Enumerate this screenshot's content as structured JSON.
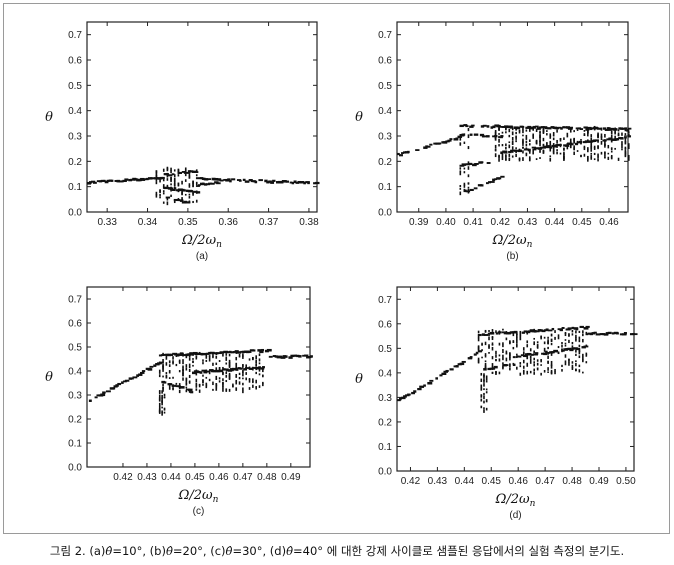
{
  "caption": {
    "prefix": "그림 2.",
    "parts": [
      {
        "label": "(a)",
        "symbol": "θ̂",
        "value": "=10°"
      },
      {
        "label": "(b)",
        "symbol": "θ̂",
        "value": "=20°"
      },
      {
        "label": "(c)",
        "symbol": "θ̂",
        "value": "=30°"
      },
      {
        "label": "(d)",
        "symbol": "θ̂",
        "value": "=40°"
      }
    ],
    "suffix": "에 대한 강제 사이클로 샘플된 응답에서의 실험 측정의 분기도."
  },
  "colors": {
    "points": "#111111",
    "axis": "#222222",
    "frame": "#9a9a9a"
  },
  "chart_data": [
    {
      "type": "scatter",
      "panel_label": "(a)",
      "xlabel": "Ω/2ω",
      "xlabel_sub": "n",
      "ylabel": "θ",
      "xlim": [
        0.325,
        0.382
      ],
      "ylim": [
        0,
        0.75
      ],
      "xticks": [
        0.33,
        0.34,
        0.35,
        0.36,
        0.37,
        0.38
      ],
      "xtick_labels": [
        "0.33",
        "0.34",
        "0.35",
        "0.36",
        "0.37",
        "0.38"
      ],
      "yticks": [
        0,
        0.1,
        0.2,
        0.3,
        0.4,
        0.5,
        0.6,
        0.7
      ],
      "ytick_labels": [
        "0.0",
        "0.1",
        "0.2",
        "0.3",
        "0.4",
        "0.5",
        "0.6",
        "0.7"
      ],
      "grid": false,
      "branches": [
        {
          "x0": 0.325,
          "x1": 0.344,
          "y0": 0.12,
          "y1": 0.14
        },
        {
          "x0": 0.344,
          "x1": 0.352,
          "y0": 0.15,
          "y1": 0.165
        },
        {
          "x0": 0.344,
          "x1": 0.352,
          "y0": 0.1,
          "y1": 0.08
        },
        {
          "x0": 0.344,
          "x1": 0.35,
          "y0": 0.06,
          "y1": 0.04
        },
        {
          "x0": 0.352,
          "x1": 0.382,
          "y0": 0.135,
          "y1": 0.118
        },
        {
          "x0": 0.352,
          "x1": 0.357,
          "y0": 0.11,
          "y1": 0.12
        }
      ],
      "bands": [
        {
          "x0": 0.342,
          "x1": 0.352,
          "y0": 0.04,
          "y1": 0.18
        }
      ]
    },
    {
      "type": "scatter",
      "panel_label": "(b)",
      "xlabel": "Ω/2ω",
      "xlabel_sub": "n",
      "ylabel": "θ",
      "xlim": [
        0.382,
        0.467
      ],
      "ylim": [
        0,
        0.75
      ],
      "xticks": [
        0.39,
        0.4,
        0.41,
        0.42,
        0.43,
        0.44,
        0.45,
        0.46
      ],
      "xtick_labels": [
        "0.39",
        "0.40",
        "0.41",
        "0.42",
        "0.43",
        "0.44",
        "0.45",
        "0.46"
      ],
      "yticks": [
        0,
        0.1,
        0.2,
        0.3,
        0.4,
        0.5,
        0.6,
        0.7
      ],
      "ytick_labels": [
        "0.0",
        "0.1",
        "0.2",
        "0.3",
        "0.4",
        "0.5",
        "0.6",
        "0.7"
      ],
      "grid": false,
      "branches": [
        {
          "x0": 0.382,
          "x1": 0.405,
          "y0": 0.23,
          "y1": 0.3
        },
        {
          "x0": 0.405,
          "x1": 0.467,
          "y0": 0.345,
          "y1": 0.33
        },
        {
          "x0": 0.405,
          "x1": 0.42,
          "y0": 0.31,
          "y1": 0.3
        },
        {
          "x0": 0.405,
          "x1": 0.415,
          "y0": 0.19,
          "y1": 0.2
        },
        {
          "x0": 0.405,
          "x1": 0.42,
          "y0": 0.08,
          "y1": 0.14
        },
        {
          "x0": 0.42,
          "x1": 0.467,
          "y0": 0.24,
          "y1": 0.3
        }
      ],
      "bands": [
        {
          "x0": 0.405,
          "x1": 0.408,
          "y0": 0.08,
          "y1": 0.34
        },
        {
          "x0": 0.418,
          "x1": 0.467,
          "y0": 0.21,
          "y1": 0.34
        }
      ]
    },
    {
      "type": "scatter",
      "panel_label": "(c)",
      "xlabel": "Ω/2ω",
      "xlabel_sub": "n",
      "ylabel": "θ",
      "xlim": [
        0.405,
        0.498
      ],
      "ylim": [
        0,
        0.75
      ],
      "xticks": [
        0.42,
        0.43,
        0.44,
        0.45,
        0.46,
        0.47,
        0.48,
        0.49
      ],
      "xtick_labels": [
        "0.42",
        "0.43",
        "0.44",
        "0.45",
        "0.46",
        "0.47",
        "0.48",
        "0.49"
      ],
      "yticks": [
        0,
        0.1,
        0.2,
        0.3,
        0.4,
        0.5,
        0.6,
        0.7
      ],
      "ytick_labels": [
        "0.0",
        "0.1",
        "0.2",
        "0.3",
        "0.4",
        "0.5",
        "0.6",
        "0.7"
      ],
      "grid": false,
      "branches": [
        {
          "x0": 0.405,
          "x1": 0.435,
          "y0": 0.28,
          "y1": 0.44
        },
        {
          "x0": 0.435,
          "x1": 0.48,
          "y0": 0.47,
          "y1": 0.49
        },
        {
          "x0": 0.48,
          "x1": 0.498,
          "y0": 0.465,
          "y1": 0.465
        },
        {
          "x0": 0.436,
          "x1": 0.448,
          "y0": 0.36,
          "y1": 0.32
        },
        {
          "x0": 0.448,
          "x1": 0.478,
          "y0": 0.4,
          "y1": 0.42
        }
      ],
      "bands": [
        {
          "x0": 0.435,
          "x1": 0.478,
          "y0": 0.32,
          "y1": 0.48
        },
        {
          "x0": 0.435,
          "x1": 0.437,
          "y0": 0.22,
          "y1": 0.32
        }
      ]
    },
    {
      "type": "scatter",
      "panel_label": "(d)",
      "xlabel": "Ω/2ω",
      "xlabel_sub": "n",
      "ylabel": "θ",
      "xlim": [
        0.415,
        0.503
      ],
      "ylim": [
        0,
        0.75
      ],
      "xticks": [
        0.42,
        0.43,
        0.44,
        0.45,
        0.46,
        0.47,
        0.48,
        0.49,
        0.5
      ],
      "xtick_labels": [
        "0.42",
        "0.43",
        "0.44",
        "0.45",
        "0.46",
        "0.47",
        "0.48",
        "0.49",
        "0.50"
      ],
      "yticks": [
        0,
        0.1,
        0.2,
        0.3,
        0.4,
        0.5,
        0.6,
        0.7
      ],
      "ytick_labels": [
        "0.0",
        "0.1",
        "0.2",
        "0.3",
        "0.4",
        "0.5",
        "0.6",
        "0.7"
      ],
      "grid": false,
      "branches": [
        {
          "x0": 0.415,
          "x1": 0.445,
          "y0": 0.29,
          "y1": 0.49
        },
        {
          "x0": 0.445,
          "x1": 0.485,
          "y0": 0.56,
          "y1": 0.59
        },
        {
          "x0": 0.485,
          "x1": 0.503,
          "y0": 0.565,
          "y1": 0.565
        },
        {
          "x0": 0.447,
          "x1": 0.458,
          "y0": 0.42,
          "y1": 0.44
        },
        {
          "x0": 0.458,
          "x1": 0.485,
          "y0": 0.47,
          "y1": 0.51
        }
      ],
      "bands": [
        {
          "x0": 0.445,
          "x1": 0.485,
          "y0": 0.4,
          "y1": 0.58
        },
        {
          "x0": 0.446,
          "x1": 0.448,
          "y0": 0.25,
          "y1": 0.4
        }
      ]
    }
  ]
}
